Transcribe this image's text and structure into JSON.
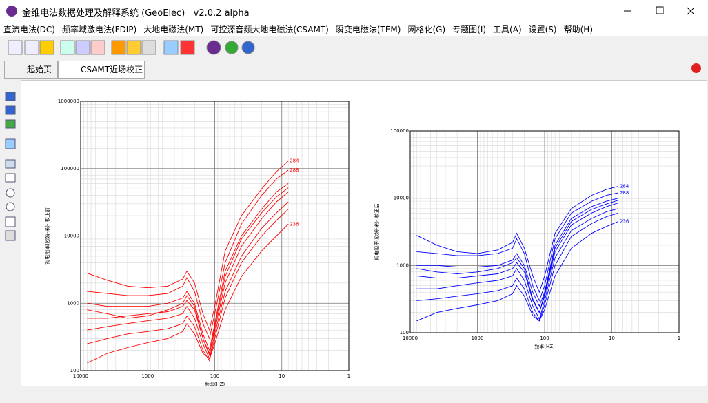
{
  "window": {
    "title": "金维电法数据处理及解释系统 (GeoElec)   v2.0.2 alpha"
  },
  "menu": [
    "直流电法(DC)",
    "频率域激电法(FDIP)",
    "大地电磁法(MT)",
    "可控源音频大地电磁法(CSAMT)",
    "瞬变电磁法(TEM)",
    "网格化(G)",
    "专题图(I)",
    "工具(A)",
    "设置(S)",
    "帮助(H)"
  ],
  "tabs": [
    "起始页",
    "CSAMT近场校正"
  ],
  "chart_data": [
    {
      "type": "line",
      "log_x": true,
      "log_y": true,
      "grid": true,
      "color": "#ff0000",
      "y_label": "视电阻率(欧姆·米)- 校正前",
      "x_label": "频率(HZ)",
      "xlim": [
        10000,
        1
      ],
      "ylim": [
        100,
        1000000
      ],
      "xticks": [
        10000,
        1000,
        100,
        10,
        1
      ],
      "yticks": [
        100,
        1000,
        10000,
        100000,
        1000000
      ],
      "x": [
        8000,
        4000,
        2000,
        1000,
        500,
        300,
        260,
        200,
        150,
        120,
        100,
        70,
        40,
        20,
        12,
        8
      ],
      "series": [
        {
          "name": "284",
          "values": [
            2800,
            2200,
            1800,
            1700,
            1800,
            2300,
            3000,
            2000,
            700,
            400,
            900,
            6000,
            20000,
            50000,
            90000,
            130000
          ]
        },
        {
          "name": "288",
          "values": [
            1500,
            1400,
            1300,
            1300,
            1400,
            1800,
            2400,
            1500,
            500,
            300,
            700,
            4000,
            15000,
            40000,
            70000,
            95000
          ]
        },
        {
          "values": [
            1000,
            900,
            900,
            900,
            1000,
            1200,
            1500,
            1000,
            350,
            200,
            500,
            3000,
            10000,
            25000,
            45000,
            60000
          ]
        },
        {
          "values": [
            600,
            600,
            650,
            700,
            750,
            900,
            1100,
            800,
            300,
            180,
            400,
            2000,
            7000,
            18000,
            32000,
            45000
          ]
        },
        {
          "values": [
            400,
            450,
            500,
            550,
            600,
            700,
            900,
            600,
            250,
            150,
            350,
            1500,
            5000,
            13000,
            22000,
            32000
          ]
        },
        {
          "values": [
            250,
            300,
            350,
            380,
            420,
            500,
            650,
            450,
            200,
            140,
            300,
            1200,
            4000,
            10000,
            17000,
            25000
          ]
        },
        {
          "values": [
            800,
            700,
            600,
            650,
            800,
            1000,
            1300,
            900,
            300,
            170,
            450,
            2500,
            9000,
            22000,
            38000,
            52000
          ]
        },
        {
          "name": "236",
          "values": [
            130,
            180,
            220,
            260,
            300,
            380,
            500,
            350,
            180,
            150,
            250,
            800,
            2500,
            6000,
            10000,
            15000
          ]
        }
      ]
    },
    {
      "type": "line",
      "log_x": true,
      "log_y": true,
      "grid": true,
      "color": "#0000ff",
      "y_label": "视电阻率(欧姆·米)- 校正后",
      "x_label": "频率(HZ)",
      "xlim": [
        10000,
        1
      ],
      "ylim": [
        100,
        100000
      ],
      "xticks": [
        10000,
        1000,
        100,
        10,
        1
      ],
      "yticks": [
        100,
        1000,
        10000,
        100000
      ],
      "x": [
        8000,
        4000,
        2000,
        1000,
        500,
        300,
        260,
        200,
        150,
        120,
        100,
        70,
        40,
        20,
        12,
        8
      ],
      "series": [
        {
          "name": "284",
          "values": [
            2800,
            2000,
            1600,
            1500,
            1700,
            2200,
            3000,
            1800,
            700,
            400,
            700,
            3000,
            7000,
            11000,
            13500,
            15000
          ]
        },
        {
          "name": "288",
          "values": [
            1600,
            1500,
            1400,
            1400,
            1500,
            1800,
            2500,
            1500,
            500,
            300,
            500,
            2500,
            6000,
            9000,
            11000,
            12000
          ]
        },
        {
          "values": [
            1000,
            1000,
            950,
            950,
            1000,
            1200,
            1500,
            1000,
            400,
            250,
            400,
            2000,
            5000,
            7500,
            9000,
            10000
          ]
        },
        {
          "values": [
            700,
            650,
            650,
            700,
            750,
            900,
            1100,
            800,
            300,
            200,
            350,
            1600,
            4000,
            6000,
            7500,
            8500
          ]
        },
        {
          "values": [
            450,
            450,
            500,
            550,
            600,
            700,
            900,
            600,
            250,
            160,
            300,
            1300,
            3300,
            5000,
            6300,
            7000
          ]
        },
        {
          "values": [
            300,
            320,
            350,
            380,
            420,
            500,
            650,
            450,
            200,
            150,
            260,
            1000,
            2700,
            4200,
            5300,
            6000
          ]
        },
        {
          "values": [
            900,
            800,
            750,
            800,
            900,
            1100,
            1300,
            900,
            320,
            200,
            380,
            1800,
            4500,
            6800,
            8200,
            9300
          ]
        },
        {
          "name": "236",
          "values": [
            150,
            200,
            230,
            260,
            300,
            380,
            500,
            350,
            180,
            150,
            220,
            700,
            1800,
            3000,
            3800,
            4500
          ]
        }
      ]
    }
  ]
}
